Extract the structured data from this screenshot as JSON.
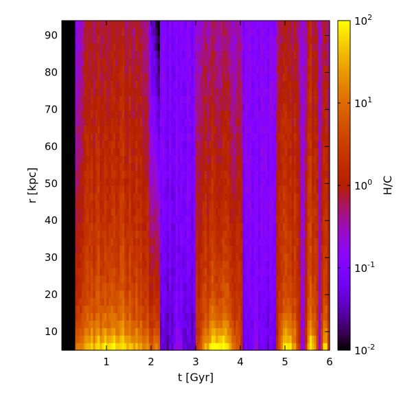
{
  "chart_data": {
    "type": "heatmap",
    "xlabel": "t [Gyr]",
    "ylabel": "r [kpc]",
    "xlim": [
      0,
      6
    ],
    "ylim": [
      5,
      94
    ],
    "xticks": [
      1,
      2,
      3,
      4,
      5,
      6
    ],
    "yticks": [
      10,
      20,
      30,
      40,
      50,
      60,
      70,
      80,
      90
    ],
    "colorbar": {
      "label": "H/C",
      "scale": "log",
      "range": [
        0.01,
        100
      ],
      "tick_bases": [
        "10",
        "10",
        "10",
        "10",
        "10"
      ],
      "tick_exponents": [
        "-2",
        "-1",
        "0",
        "1",
        "2"
      ],
      "colormap": "gnuplot"
    },
    "grid": false,
    "value": "H/C ratio as function of time t and radius r",
    "regions": [
      {
        "t_range": [
          0,
          0.3
        ],
        "description": "no data (black)"
      },
      {
        "t_range": [
          0.3,
          2.2
        ],
        "peak_log10": 2.0,
        "description": "high H/C burst"
      },
      {
        "t_range": [
          2.2,
          3.0
        ],
        "peak_log10": -1.5,
        "description": "low H/C"
      },
      {
        "t_range": [
          3.0,
          4.05
        ],
        "peak_log10": 2.0,
        "description": "high H/C burst"
      },
      {
        "t_range": [
          4.05,
          4.8
        ],
        "peak_log10": -1.3,
        "description": "low H/C"
      },
      {
        "t_range": [
          4.8,
          6.0
        ],
        "peak_log10": 1.8,
        "description": "high H/C bursts"
      }
    ]
  }
}
